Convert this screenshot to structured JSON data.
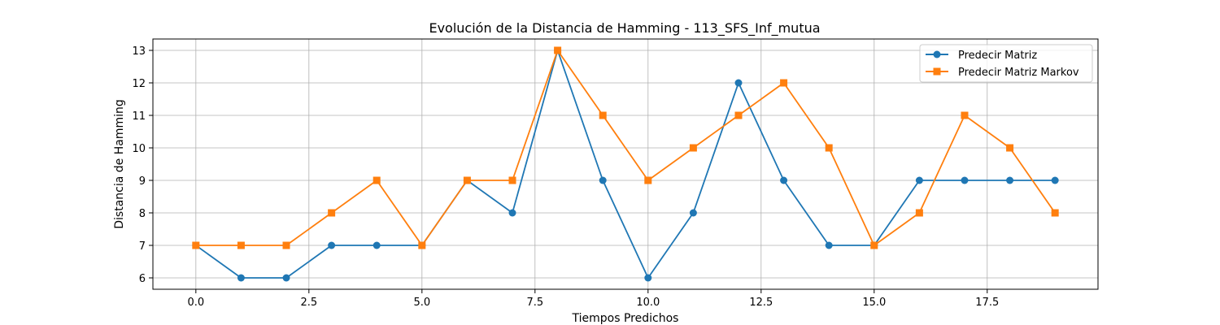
{
  "chart_data": {
    "type": "line",
    "title": "Evolución de la Distancia de Hamming - 113_SFS_Inf_mutua",
    "xlabel": "Tiempos Predichos",
    "ylabel": "Distancia de Hamming",
    "x": [
      0,
      1,
      2,
      3,
      4,
      5,
      6,
      7,
      8,
      9,
      10,
      11,
      12,
      13,
      14,
      15,
      16,
      17,
      18,
      19
    ],
    "xlim": [
      -0.95,
      19.95
    ],
    "ylim": [
      5.65,
      13.35
    ],
    "xticks": [
      0.0,
      2.5,
      5.0,
      7.5,
      10.0,
      12.5,
      15.0,
      17.5
    ],
    "xtick_labels": [
      "0.0",
      "2.5",
      "5.0",
      "7.5",
      "10.0",
      "12.5",
      "15.0",
      "17.5"
    ],
    "yticks": [
      6,
      7,
      8,
      9,
      10,
      11,
      12,
      13
    ],
    "ytick_labels": [
      "6",
      "7",
      "8",
      "9",
      "10",
      "11",
      "12",
      "13"
    ],
    "grid": true,
    "legend_position": "top-right",
    "series": [
      {
        "name": "Predecir Matriz",
        "color": "#1f77b4",
        "marker": "circle",
        "values": [
          7,
          6,
          6,
          7,
          7,
          7,
          9,
          8,
          13,
          9,
          6,
          8,
          12,
          9,
          7,
          7,
          9,
          9,
          9,
          9
        ]
      },
      {
        "name": "Predecir Matriz Markov",
        "color": "#ff7f0e",
        "marker": "square",
        "values": [
          7,
          7,
          7,
          8,
          9,
          7,
          9,
          9,
          13,
          11,
          9,
          10,
          11,
          12,
          10,
          7,
          8,
          11,
          10,
          8
        ]
      }
    ]
  }
}
